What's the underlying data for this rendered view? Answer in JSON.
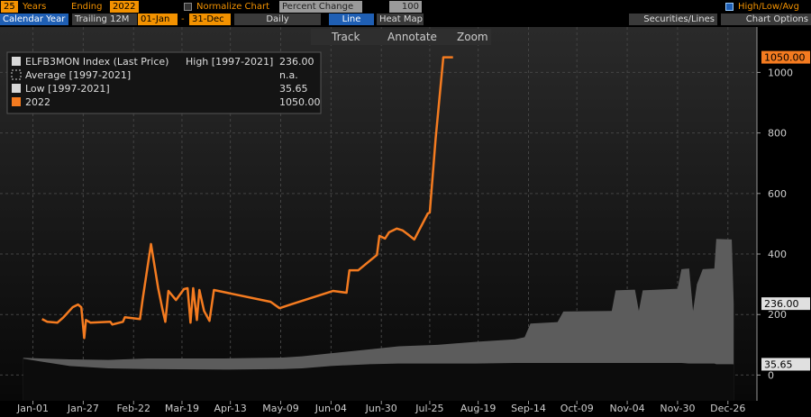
{
  "toolbar": {
    "years": "25",
    "years_label": "Years",
    "ending_label": "Ending",
    "ending": "2022",
    "normalize": "Normalize Chart",
    "mode": "Percent Change",
    "base": "100",
    "high_low_avg": "High/Low/Avg",
    "calendar": "Calendar Year",
    "trailing": "Trailing 12M",
    "start": "01-Jan",
    "dash": "-",
    "end": "31-Dec",
    "frequency": "Daily",
    "line": "Line",
    "heat_map": "Heat Map",
    "securities": "Securities/Lines",
    "options": "Chart Options",
    "track": "Track",
    "annotate": "Annotate",
    "zoom": "Zoom"
  },
  "chart_data": {
    "type": "line",
    "security": "ELFB3MON Index (Last Price)",
    "average": {
      "name": "Average [1997-2021]",
      "label": "n.a."
    },
    "xlim": [
      -16,
      375
    ],
    "xticks": [
      {
        "value": 1,
        "label": "Jan-01"
      },
      {
        "value": 27,
        "label": "Jan-27"
      },
      {
        "value": 53,
        "label": "Feb-22"
      },
      {
        "value": 78,
        "label": "Mar-19"
      },
      {
        "value": 103,
        "label": "Apr-13"
      },
      {
        "value": 129,
        "label": "May-09"
      },
      {
        "value": 155,
        "label": "Jun-04"
      },
      {
        "value": 181,
        "label": "Jun-30"
      },
      {
        "value": 206,
        "label": "Jul-25"
      },
      {
        "value": 231,
        "label": "Aug-19"
      },
      {
        "value": 257,
        "label": "Sep-14"
      },
      {
        "value": 282,
        "label": "Oct-09"
      },
      {
        "value": 308,
        "label": "Nov-04"
      },
      {
        "value": 334,
        "label": "Nov-30"
      },
      {
        "value": 360,
        "label": "Dec-26"
      }
    ],
    "ylim": [
      -85,
      1150
    ],
    "yticks": [
      0,
      200,
      400,
      600,
      800,
      1000
    ],
    "grid": true,
    "series": [
      {
        "name": "High [1997-2021]",
        "color": "#5c5c5c",
        "kind": "area",
        "last_label": "236.00",
        "x": [
          -4,
          5,
          20,
          40,
          60,
          100,
          130,
          140,
          155,
          175,
          190,
          210,
          230,
          250,
          255,
          258,
          272,
          275,
          300,
          302,
          312,
          314,
          316,
          334,
          336,
          340,
          342,
          344,
          347,
          353,
          354,
          362,
          363
        ],
        "values": [
          57,
          55,
          52,
          50,
          55,
          55,
          58,
          62,
          72,
          85,
          95,
          100,
          110,
          118,
          125,
          170,
          175,
          210,
          212,
          280,
          282,
          212,
          280,
          285,
          350,
          352,
          212,
          300,
          350,
          352,
          450,
          448,
          236
        ]
      },
      {
        "name": "Low [1997-2021]",
        "color": "#d0d0d0",
        "kind": "floor",
        "last_label": "35.65",
        "x": [
          -4,
          5,
          20,
          40,
          60,
          100,
          130,
          140,
          155,
          175,
          190,
          210,
          230,
          250,
          255,
          258,
          272,
          275,
          300,
          302,
          312,
          314,
          316,
          334,
          336,
          340,
          342,
          344,
          347,
          353,
          354,
          362,
          363
        ],
        "values": [
          54,
          45,
          30,
          22,
          20,
          18,
          20,
          22,
          30,
          36,
          38,
          38,
          38,
          40,
          40,
          40,
          40,
          40,
          40,
          40,
          40,
          40,
          40,
          40,
          40,
          38,
          38,
          38,
          38,
          38,
          36,
          36,
          35.65
        ]
      },
      {
        "name": "2022",
        "color": "#f47b20",
        "kind": "line",
        "last_label": "1050.00",
        "x": [
          5.7,
          8.4,
          13.6,
          16.8,
          21.5,
          24.3,
          26,
          27.5,
          28.4,
          30.8,
          41,
          42,
          47.5,
          48.5,
          56.3,
          57.7,
          62,
          65.7,
          68,
          69.4,
          71,
          74.9,
          79,
          80.9,
          82.4,
          83.8,
          85.7,
          87,
          89.4,
          92.2,
          94.5,
          123.8,
          128.4,
          134,
          156,
          163,
          164.5,
          169,
          178.7,
          180,
          182.9,
          185,
          189,
          192,
          194.5,
          198,
          205,
          206,
          209,
          213,
          218
        ],
        "values": [
          185,
          176,
          173,
          191,
          224,
          233,
          224,
          122,
          182,
          173,
          176,
          167,
          176,
          191,
          185,
          251,
          433,
          287,
          215,
          176,
          278,
          248,
          284,
          287,
          173,
          287,
          182,
          281,
          212,
          179,
          281,
          242,
          221,
          233,
          278,
          272,
          346,
          346,
          397,
          460,
          451,
          472,
          484,
          478,
          466,
          448,
          534,
          537,
          779,
          1050,
          1050
        ]
      }
    ]
  }
}
